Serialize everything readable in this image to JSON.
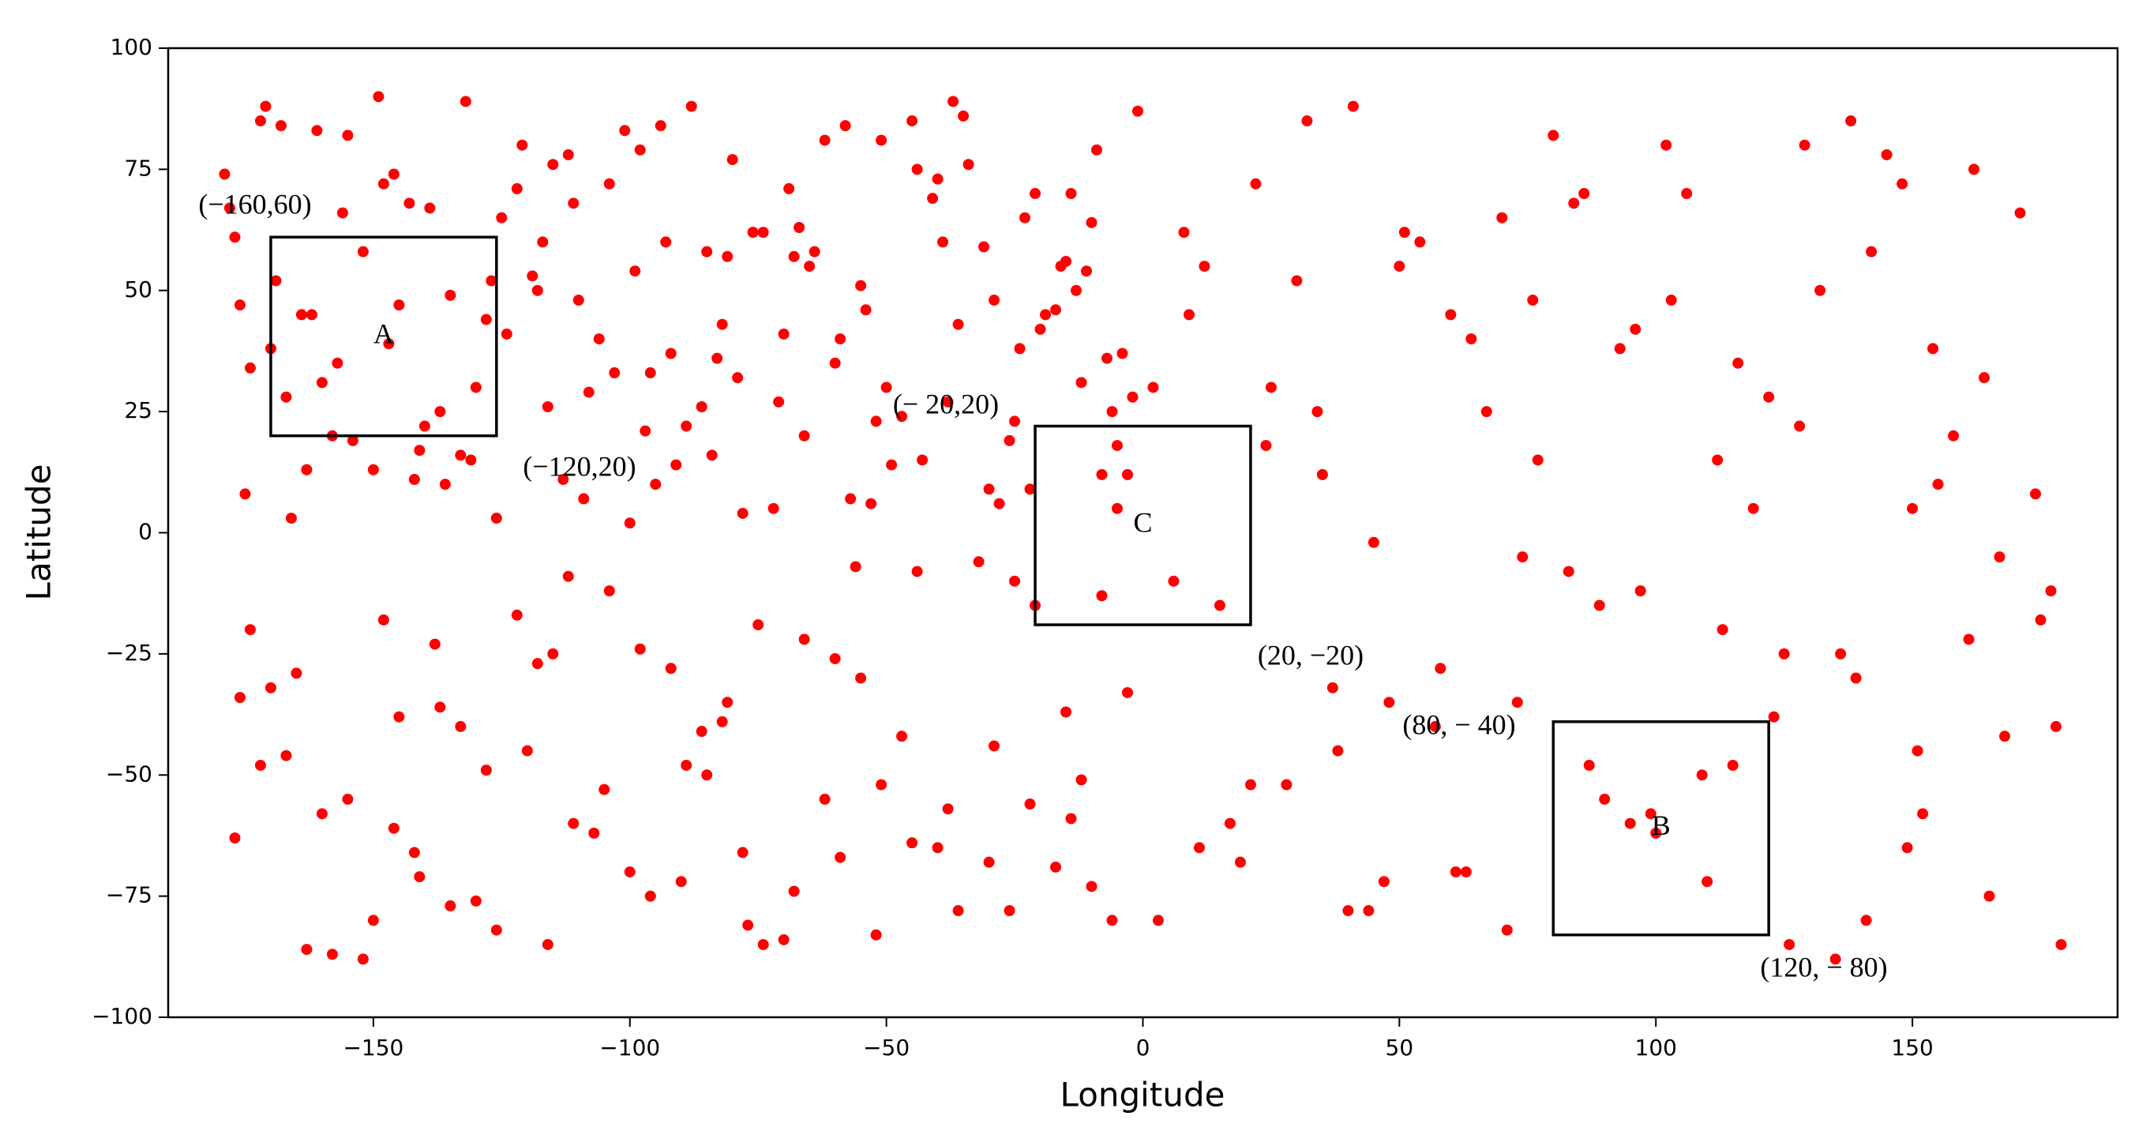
{
  "chart_data": {
    "type": "scatter",
    "color": "#ff0000",
    "x_label": "Longitude",
    "y_label": "Latitude",
    "xlim": [
      -190,
      190
    ],
    "ylim": [
      -100,
      100
    ],
    "xticks": [
      {
        "value": -150,
        "label": "−150"
      },
      {
        "value": -100,
        "label": "−100"
      },
      {
        "value": -50,
        "label": "−50"
      },
      0,
      50,
      100,
      150
    ],
    "yticks": [
      {
        "value": -100,
        "label": "−100"
      },
      {
        "value": -75,
        "label": "−75"
      },
      {
        "value": -50,
        "label": "−50"
      },
      {
        "value": -25,
        "label": "−25"
      },
      0,
      25,
      50,
      75,
      100
    ],
    "grid": false,
    "x": [
      -175,
      -162,
      -148,
      -131,
      -117,
      -103,
      -88,
      -72,
      -55,
      -38,
      -21,
      -8,
      -170,
      -155,
      -140,
      -125,
      -110,
      -95,
      -80,
      -65,
      -50,
      -35,
      -20,
      -5,
      -178,
      -166,
      -152,
      -137,
      -121,
      -106,
      -91,
      -76,
      -60,
      -44,
      -28,
      -13,
      -2,
      -172,
      -158,
      -143,
      -128,
      -113,
      -98,
      -83,
      -68,
      -52,
      -37,
      -22,
      -10,
      -176,
      -160,
      -146,
      -133,
      -119,
      -101,
      -86,
      -70,
      -57,
      -41,
      -26,
      -15,
      -4,
      -168,
      -150,
      -135,
      -122,
      -108,
      -93,
      -78,
      -62,
      -47,
      -31,
      -17,
      -1,
      -174,
      -156,
      -141,
      -127,
      -112,
      -97,
      -82,
      -67,
      -53,
      -40,
      -24,
      -11,
      -3,
      -164,
      -149,
      -130,
      -115,
      -100,
      -85,
      -71,
      -58,
      -43,
      -29,
      -14,
      -7,
      -177,
      -169,
      -154,
      -139,
      -124,
      -109,
      -94,
      -79,
      -64,
      -49,
      -34,
      -19,
      -6,
      -171,
      -157,
      -142,
      -118,
      -104,
      -89,
      -74,
      -59,
      -45,
      -30,
      -16,
      -9,
      -167,
      -145,
      -126,
      -111,
      -96,
      -81,
      -66,
      -51,
      -36,
      -23,
      -12,
      -179,
      -163,
      -147,
      -132,
      -116,
      -99,
      -84,
      -69,
      -54,
      -39,
      -25,
      -5,
      -161,
      -136,
      -92,
      -177,
      -170,
      -163,
      -155,
      -148,
      -141,
      -133,
      -126,
      -118,
      -111,
      -104,
      -96,
      -89,
      -81,
      -74,
      -66,
      -59,
      -51,
      -44,
      -36,
      -29,
      -21,
      -14,
      -6,
      -174,
      -160,
      -145,
      -130,
      -115,
      -100,
      -85,
      -70,
      -55,
      -40,
      -25,
      -10,
      -167,
      -152,
      -137,
      -122,
      -107,
      -92,
      -77,
      -62,
      -47,
      -32,
      -17,
      -3,
      -158,
      -128,
      -98,
      -68,
      -38,
      -8,
      -172,
      -142,
      -112,
      -82,
      -52,
      -22,
      -165,
      -135,
      -105,
      -75,
      -45,
      -15,
      -150,
      -120,
      -90,
      -60,
      -30,
      -176,
      -146,
      -116,
      -86,
      -56,
      -26,
      -12,
      -138,
      -78,
      3,
      9,
      15,
      22,
      28,
      35,
      41,
      48,
      54,
      61,
      67,
      74,
      80,
      87,
      93,
      100,
      106,
      113,
      119,
      126,
      132,
      139,
      145,
      152,
      158,
      165,
      171,
      178,
      6,
      12,
      19,
      25,
      32,
      38,
      45,
      51,
      58,
      64,
      71,
      77,
      84,
      90,
      97,
      103,
      110,
      116,
      123,
      129,
      136,
      142,
      149,
      155,
      162,
      168,
      175,
      2,
      17,
      30,
      44,
      57,
      70,
      83,
      96,
      109,
      122,
      135,
      148,
      161,
      174,
      11,
      24,
      37,
      50,
      63,
      76,
      89,
      102,
      115,
      128,
      141,
      154,
      167,
      179,
      8,
      21,
      34,
      47,
      60,
      73,
      86,
      99,
      112,
      125,
      138,
      151,
      164,
      177,
      40,
      95,
      150
    ],
    "values": [
      8,
      45,
      72,
      15,
      60,
      33,
      88,
      5,
      51,
      27,
      70,
      12,
      38,
      82,
      22,
      65,
      48,
      10,
      77,
      55,
      30,
      86,
      42,
      18,
      67,
      3,
      58,
      25,
      80,
      40,
      14,
      62,
      35,
      75,
      6,
      50,
      28,
      85,
      20,
      68,
      44,
      11,
      79,
      36,
      57,
      23,
      89,
      9,
      64,
      47,
      31,
      74,
      16,
      53,
      83,
      26,
      41,
      7,
      69,
      19,
      56,
      37,
      84,
      13,
      49,
      71,
      29,
      60,
      4,
      81,
      24,
      59,
      46,
      87,
      34,
      66,
      17,
      52,
      78,
      21,
      43,
      63,
      6,
      73,
      38,
      54,
      12,
      45,
      90,
      30,
      76,
      2,
      58,
      27,
      84,
      15,
      48,
      70,
      36,
      61,
      52,
      19,
      67,
      41,
      7,
      84,
      32,
      58,
      14,
      76,
      45,
      25,
      88,
      35,
      11,
      50,
      72,
      22,
      62,
      40,
      85,
      9,
      55,
      79,
      28,
      47,
      3,
      68,
      33,
      57,
      20,
      81,
      43,
      65,
      31,
      74,
      13,
      39,
      89,
      26,
      54,
      16,
      71,
      46,
      60,
      23,
      5,
      83,
      10,
      37,
      -63,
      -32,
      -86,
      -55,
      -18,
      -71,
      -40,
      -82,
      -27,
      -60,
      -12,
      -75,
      -48,
      -35,
      -85,
      -22,
      -67,
      -52,
      -8,
      -78,
      -44,
      -15,
      -59,
      -80,
      -20,
      -58,
      -38,
      -76,
      -25,
      -70,
      -50,
      -84,
      -30,
      -65,
      -10,
      -73,
      -46,
      -88,
      -36,
      -17,
      -62,
      -28,
      -81,
      -55,
      -42,
      -6,
      -69,
      -33,
      -87,
      -49,
      -24,
      -74,
      -57,
      -13,
      -48,
      -66,
      -9,
      -39,
      -83,
      -56,
      -29,
      -77,
      -53,
      -19,
      -64,
      -37,
      -80,
      -45,
      -72,
      -26,
      -68,
      -34,
      -61,
      -85,
      -41,
      -7,
      -78,
      -51,
      -23,
      -66,
      -80,
      45,
      -15,
      72,
      -52,
      12,
      88,
      -35,
      60,
      -70,
      25,
      -5,
      82,
      -48,
      38,
      -62,
      70,
      -20,
      5,
      -85,
      50,
      -30,
      78,
      -58,
      20,
      -75,
      66,
      -40,
      -10,
      55,
      -68,
      30,
      85,
      -45,
      -2,
      62,
      -28,
      40,
      -82,
      15,
      68,
      -55,
      -12,
      48,
      -72,
      35,
      -38,
      80,
      -25,
      58,
      -65,
      10,
      75,
      -42,
      -18,
      30,
      -60,
      52,
      -78,
      -40,
      65,
      -8,
      42,
      -50,
      28,
      -88,
      72,
      -22,
      8,
      -65,
      18,
      -32,
      55,
      -70,
      48,
      -15,
      80,
      -48,
      22,
      -80,
      38,
      -5,
      -85,
      62,
      -52,
      25,
      -72,
      45,
      -35,
      70,
      -58,
      15,
      -25,
      85,
      -45,
      32,
      -12,
      -78,
      -60,
      5
    ],
    "regions": [
      {
        "label": "A",
        "x": [
          -170,
          -126
        ],
        "y": [
          20,
          61
        ]
      },
      {
        "label": "B",
        "x": [
          80,
          122
        ],
        "y": [
          -83,
          -39
        ]
      },
      {
        "label": "C",
        "x": [
          -21,
          21
        ],
        "y": [
          -19,
          22
        ]
      }
    ],
    "annotations": [
      "(−160,60)",
      "(−120,20)",
      "(− 20,20)",
      "(20, −20)",
      "(80, − 40)",
      "(120, − 80)"
    ]
  }
}
